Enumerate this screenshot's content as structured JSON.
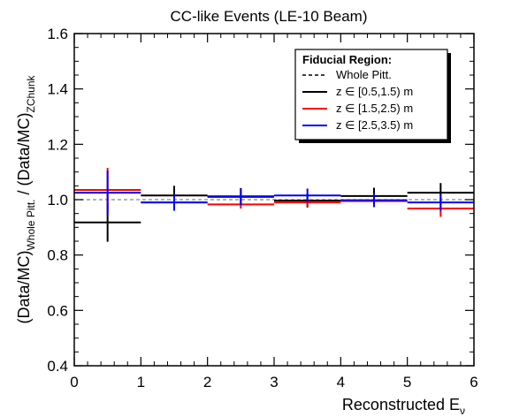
{
  "chart_data": {
    "type": "scatter",
    "title": "CC-like Events (LE-10 Beam)",
    "xlabel": "Reconstructed E",
    "xlabel_sub": "ν",
    "ylabel_pre": "(Data/MC)",
    "ylabel_sub1": "Whole Pitt.",
    "ylabel_mid": " / (Data/MC)",
    "ylabel_sub2": "ZChunk",
    "xlim": [
      0,
      6
    ],
    "ylim": [
      0.4,
      1.6
    ],
    "xticks": [
      "0",
      "1",
      "2",
      "3",
      "4",
      "5",
      "6"
    ],
    "yticks": [
      "0.4",
      "0.6",
      "0.8",
      "1.0",
      "1.2",
      "1.4",
      "1.6"
    ],
    "reference_line": 1.0,
    "legend": {
      "title": "Fiducial Region:",
      "placement": "top-right",
      "entries": [
        {
          "label": "Whole Pitt.",
          "style": "dashed",
          "color": "#000000"
        },
        {
          "label": "z ∈ [0.5,1.5) m",
          "style": "solid",
          "color": "#000000"
        },
        {
          "label": "z ∈ [1.5,2.5) m",
          "style": "solid",
          "color": "#ff0000"
        },
        {
          "label": "z ∈ [2.5,3.5) m",
          "style": "solid",
          "color": "#0000ff"
        }
      ]
    },
    "series": [
      {
        "name": "z ∈ [0.5,1.5) m",
        "color": "#000000",
        "points": [
          {
            "x0": 0,
            "x1": 1,
            "xc": 0.5,
            "y": 0.918,
            "err": 0.07
          },
          {
            "x0": 1,
            "x1": 2,
            "xc": 1.5,
            "y": 1.015,
            "err": 0.035
          },
          {
            "x0": 2,
            "x1": 3,
            "xc": 2.5,
            "y": 1.012,
            "err": 0.03
          },
          {
            "x0": 3,
            "x1": 4,
            "xc": 3.5,
            "y": 0.997,
            "err": 0.025
          },
          {
            "x0": 4,
            "x1": 5,
            "xc": 4.5,
            "y": 1.013,
            "err": 0.03
          },
          {
            "x0": 5,
            "x1": 6,
            "xc": 5.5,
            "y": 1.025,
            "err": 0.035
          }
        ]
      },
      {
        "name": "z ∈ [1.5,2.5) m",
        "color": "#ff0000",
        "points": [
          {
            "x0": 0,
            "x1": 1,
            "xc": 0.5,
            "y": 1.035,
            "err": 0.08
          },
          {
            "x0": 1,
            "x1": 2,
            "xc": 1.5,
            "y": 0.99,
            "err": 0.015
          },
          {
            "x0": 2,
            "x1": 3,
            "xc": 2.5,
            "y": 0.983,
            "err": 0.015
          },
          {
            "x0": 3,
            "x1": 4,
            "xc": 3.5,
            "y": 0.99,
            "err": 0.015
          },
          {
            "x0": 4,
            "x1": 5,
            "xc": 4.5,
            "y": 0.995,
            "err": 0.015
          },
          {
            "x0": 5,
            "x1": 6,
            "xc": 5.5,
            "y": 0.968,
            "err": 0.03
          }
        ]
      },
      {
        "name": "z ∈ [2.5,3.5) m",
        "color": "#0000ff",
        "points": [
          {
            "x0": 0,
            "x1": 1,
            "xc": 0.5,
            "y": 1.025,
            "err": 0.08
          },
          {
            "x0": 1,
            "x1": 2,
            "xc": 1.5,
            "y": 0.99,
            "err": 0.03
          },
          {
            "x0": 2,
            "x1": 3,
            "xc": 2.5,
            "y": 1.01,
            "err": 0.03
          },
          {
            "x0": 3,
            "x1": 4,
            "xc": 3.5,
            "y": 1.015,
            "err": 0.025
          },
          {
            "x0": 4,
            "x1": 5,
            "xc": 4.5,
            "y": 0.998,
            "err": 0.025
          },
          {
            "x0": 5,
            "x1": 6,
            "xc": 5.5,
            "y": 0.99,
            "err": 0.03
          }
        ]
      }
    ]
  }
}
